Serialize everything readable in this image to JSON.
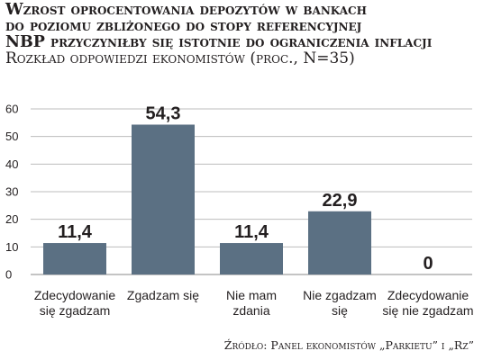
{
  "chart_data": {
    "type": "bar",
    "title_lines": [
      "Wzrost oprocentowania depozytów w bankach",
      "do poziomu zbliżonego do stopy referencyjnej",
      "NBP przyczyniłby się istotnie do ograniczenia inflacji"
    ],
    "subtitle": "Rozkład odpowiedzi ekonomistów (proc., N=35)",
    "categories": [
      [
        "Zdecydowanie",
        "się zgadzam"
      ],
      [
        "Zgadzam się"
      ],
      [
        "Nie mam",
        "zdania"
      ],
      [
        "Nie zgadzam",
        "się"
      ],
      [
        "Zdecydowanie",
        "się nie zgadzam"
      ]
    ],
    "values": [
      11.4,
      54.3,
      11.4,
      22.9,
      0
    ],
    "value_labels": [
      "11,4",
      "54,3",
      "11,4",
      "22,9",
      "0"
    ],
    "yticks": [
      0,
      10,
      20,
      30,
      40,
      50,
      60
    ],
    "ylim": [
      0,
      60
    ],
    "grid": true,
    "bar_color": "#5b7083",
    "grid_color": "#bdbdbd",
    "source": "Źródło: Panel ekonomistów „Parkietu” i „Rz”"
  }
}
